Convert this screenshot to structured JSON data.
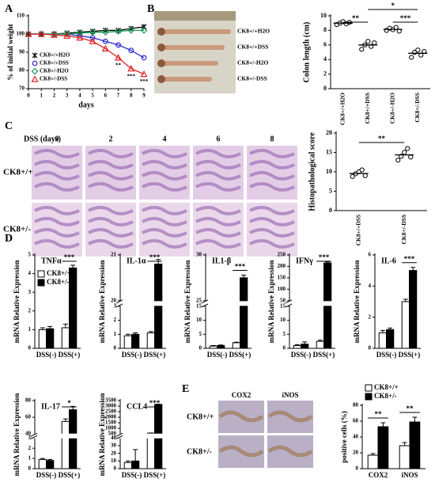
{
  "panel_labels": [
    "A",
    "B",
    "C",
    "D",
    "E"
  ],
  "photo_b": {
    "labels": [
      "CK8+/+H2O",
      "CK8+/+DSS",
      "CK8+/-H2O",
      "CK8+/-DSS"
    ]
  },
  "photo_c": {
    "title": "DSS (days)",
    "columns": [
      "0",
      "2",
      "4",
      "6",
      "8"
    ],
    "rows": [
      "CK8+/+",
      "CK8+/-"
    ]
  },
  "photo_e": {
    "columns": [
      "COX2",
      "iNOS"
    ],
    "rows": [
      "CK8+/+",
      "CK8+/-"
    ]
  },
  "chart_data": [
    {
      "type": "line",
      "ylabel": "% of initial weight",
      "xlabel": "days",
      "x": [
        0,
        1,
        2,
        3,
        4,
        5,
        6,
        7,
        8,
        9
      ],
      "xlim": [
        0,
        9
      ],
      "xticks": [
        0,
        1,
        2,
        3,
        4,
        5,
        6,
        7,
        8,
        9
      ],
      "ylim": [
        70,
        110
      ],
      "yticks": [
        70,
        80,
        90,
        100,
        110
      ],
      "legend": "lower left",
      "series": [
        {
          "name": "CK8+/+H2O",
          "color": "#000000",
          "values": [
            100,
            100,
            100,
            100.5,
            101,
            101.5,
            102,
            102,
            103,
            104
          ]
        },
        {
          "name": "CK8+/+DSS",
          "color": "#2b2bd0",
          "values": [
            100,
            100,
            100,
            100,
            99,
            98,
            96,
            94,
            91,
            87
          ]
        },
        {
          "name": "CK8+/-H2O",
          "color": "#1a9a5a",
          "values": [
            100,
            100,
            100,
            100,
            100.5,
            101,
            101,
            101.5,
            102,
            102
          ]
        },
        {
          "name": "CK8+/-DSS",
          "color": "#e02020",
          "values": [
            100,
            100,
            99.5,
            99,
            98,
            96,
            92,
            87,
            81,
            78
          ]
        }
      ],
      "annotations": [
        "**",
        "***",
        "***"
      ]
    },
    {
      "type": "dot",
      "ylabel": "Colon length (cm)",
      "categories": [
        "CK8+/+H2O",
        "CK8+/+DSS",
        "CK8+/-H2O",
        "CK8+/-DSS"
      ],
      "ylim": [
        0,
        10
      ],
      "yticks": [
        0,
        2,
        4,
        6,
        8,
        10
      ],
      "values": [
        [
          8.8,
          9.0,
          9.2,
          8.9,
          9.1
        ],
        [
          5.4,
          6.0,
          6.5,
          5.8,
          6.3
        ],
        [
          8.0,
          8.3,
          8.1,
          8.4,
          7.9
        ],
        [
          4.3,
          5.0,
          5.3,
          4.6,
          5.1
        ]
      ],
      "means": [
        9.0,
        6.0,
        8.14,
        4.86
      ],
      "annotations": [
        "**",
        "***",
        "*"
      ]
    },
    {
      "type": "dot",
      "ylabel": "Histopathological score",
      "categories": [
        "CK8+/+DSS",
        "CK8+/-DSS"
      ],
      "ylim": [
        0,
        20
      ],
      "yticks": [
        0,
        5,
        10,
        15,
        20
      ],
      "values": [
        [
          8.8,
          9.5,
          10,
          10.5,
          9.0
        ],
        [
          13,
          14,
          15,
          16,
          13.8
        ]
      ],
      "means": [
        9.56,
        14.36
      ],
      "annotations": [
        "**"
      ]
    },
    {
      "type": "bar",
      "title": "TNFα",
      "ylabel": "mRNA Relative Expression",
      "categories": [
        "DSS(-)",
        "DSS(+)"
      ],
      "ylim": [
        0,
        5
      ],
      "yticks": [
        0,
        1,
        2,
        3,
        4,
        5
      ],
      "legend": "upper left",
      "series": [
        {
          "name": "CK8+/+",
          "color": "#ffffff",
          "values": [
            1.0,
            1.1
          ],
          "errors": [
            0.1,
            0.2
          ]
        },
        {
          "name": "CK8+/-",
          "color": "#000000",
          "values": [
            1.05,
            4.3
          ],
          "errors": [
            0.12,
            0.15
          ]
        }
      ],
      "annotations": [
        "***"
      ]
    },
    {
      "type": "bar",
      "title": "IL-1α",
      "ylabel": "mRNA Relative Expression",
      "categories": [
        "DSS(-)",
        "DSS(+)"
      ],
      "ylim": [
        0,
        21
      ],
      "ybreak": [
        3,
        20
      ],
      "yticks": [
        0,
        1,
        2,
        3,
        20,
        21
      ],
      "series": [
        {
          "name": "CK8+/+",
          "color": "#ffffff",
          "values": [
            0.9,
            1.1
          ],
          "errors": [
            0.1,
            0.1
          ]
        },
        {
          "name": "CK8+/-",
          "color": "#000000",
          "values": [
            1.0,
            20.8
          ],
          "errors": [
            0.1,
            0.1
          ]
        }
      ],
      "annotations": [
        "***"
      ]
    },
    {
      "type": "bar",
      "title": "IL1-β",
      "ylabel": "mRNA Relative Expression",
      "categories": [
        "DSS(-)",
        "DSS(+)"
      ],
      "ylim": [
        0,
        30
      ],
      "ybreak": [
        15,
        25
      ],
      "yticks": [
        0,
        5,
        10,
        15,
        25,
        30
      ],
      "series": [
        {
          "name": "CK8+/+",
          "color": "#ffffff",
          "values": [
            0.8,
            2.0
          ],
          "errors": [
            0.2,
            0.2
          ]
        },
        {
          "name": "CK8+/-",
          "color": "#000000",
          "values": [
            1.0,
            27.5
          ],
          "errors": [
            0.2,
            0.3
          ]
        }
      ],
      "annotations": [
        "***"
      ]
    },
    {
      "type": "bar",
      "title": "IFNγ",
      "ylabel": "mRNA Relative Expression",
      "categories": [
        "DSS(-)",
        "DSS(+)"
      ],
      "ylim": [
        0,
        250
      ],
      "ybreak": [
        15,
        50
      ],
      "yticks": [
        0,
        5,
        10,
        15,
        50,
        100,
        150,
        200,
        250
      ],
      "series": [
        {
          "name": "CK8+/+",
          "color": "#ffffff",
          "values": [
            1.0,
            2.5
          ],
          "errors": [
            0.3,
            0.4
          ]
        },
        {
          "name": "CK8+/-",
          "color": "#000000",
          "values": [
            1.5,
            215
          ],
          "errors": [
            0.8,
            5
          ]
        }
      ],
      "annotations": [
        "***"
      ]
    },
    {
      "type": "bar",
      "title": "IL-6",
      "ylabel": "mRNA Relative Expression",
      "categories": [
        "DSS(-)",
        "DSS(+)"
      ],
      "ylim": [
        0,
        6
      ],
      "yticks": [
        0,
        2,
        4,
        6
      ],
      "series": [
        {
          "name": "CK8+/+",
          "color": "#ffffff",
          "values": [
            1.0,
            3.0
          ],
          "errors": [
            0.15,
            0.15
          ]
        },
        {
          "name": "CK8+/-",
          "color": "#000000",
          "values": [
            1.2,
            5.0
          ],
          "errors": [
            0.1,
            0.2
          ]
        }
      ],
      "annotations": [
        "***"
      ]
    },
    {
      "type": "bar",
      "title": "IL-17",
      "ylabel": "mRNA Relative Expression",
      "categories": [
        "DSS(-)",
        "DSS(+)"
      ],
      "ylim": [
        0,
        80
      ],
      "ybreak": [
        3,
        40
      ],
      "yticks": [
        0,
        1,
        2,
        3,
        40,
        60,
        80
      ],
      "series": [
        {
          "name": "CK8+/+",
          "color": "#ffffff",
          "values": [
            0.9,
            55
          ],
          "errors": [
            0.1,
            3
          ]
        },
        {
          "name": "CK8+/-",
          "color": "#000000",
          "values": [
            0.8,
            69
          ],
          "errors": [
            0.1,
            4
          ]
        }
      ],
      "annotations": [
        "*"
      ]
    },
    {
      "type": "bar",
      "title": "CCL4",
      "ylabel": "mRNA Relative Expression",
      "categories": [
        "DSS(-)",
        "DSS(+)"
      ],
      "ylim": [
        0,
        3500
      ],
      "ybreak": [
        40,
        500
      ],
      "yticks": [
        0,
        10,
        20,
        30,
        40,
        500,
        1000,
        1500,
        2000,
        2500,
        3000,
        3500
      ],
      "series": [
        {
          "name": "CK8+/+",
          "color": "#ffffff",
          "values": [
            8,
            570
          ],
          "errors": [
            2,
            20
          ]
        },
        {
          "name": "CK8+/-",
          "color": "#000000",
          "values": [
            10,
            3150
          ],
          "errors": [
            15,
            30
          ]
        }
      ],
      "annotations": [
        "***"
      ]
    },
    {
      "type": "bar",
      "ylabel": "positive cells (%)",
      "categories": [
        "COX2",
        "iNOS"
      ],
      "ylim": [
        0,
        80
      ],
      "yticks": [
        0,
        20,
        40,
        60,
        80
      ],
      "legend": "top",
      "series": [
        {
          "name": "CK8+/+",
          "color": "#ffffff",
          "values": [
            17,
            29
          ],
          "errors": [
            2,
            4
          ]
        },
        {
          "name": "CK8+/-",
          "color": "#000000",
          "values": [
            53,
            59
          ],
          "errors": [
            5,
            6
          ]
        }
      ],
      "annotations": [
        "**",
        "**"
      ]
    }
  ]
}
